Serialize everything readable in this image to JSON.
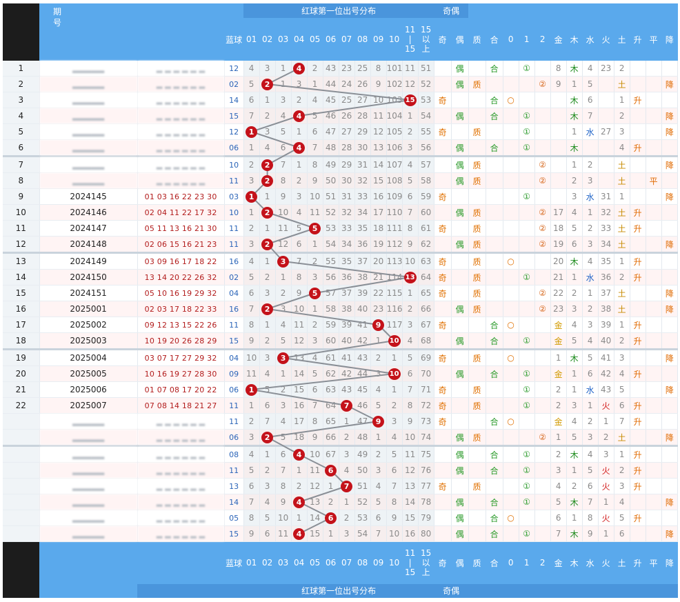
{
  "header": {
    "period_label": "期号",
    "red_first_title": "红球第一位出号分布",
    "odd_even_title": "奇偶",
    "blue_label": "蓝球",
    "dist_columns": [
      "01",
      "02",
      "03",
      "04",
      "05",
      "06",
      "07",
      "08",
      "09",
      "10",
      "11\n|\n15",
      "15\n以\n上"
    ],
    "attr_columns": [
      "奇",
      "偶",
      "质",
      "合",
      "0",
      "1",
      "2",
      "金",
      "木",
      "水",
      "火",
      "土",
      "升",
      "平",
      "降"
    ]
  },
  "footer": {
    "red_first_title": "红球第一位出号分布",
    "odd_even_title": "奇偶",
    "blue_label": "蓝球"
  },
  "rows": [
    {
      "idx": "1",
      "period": "",
      "nums": "",
      "blue": "12",
      "dist": [
        "4",
        "3",
        "1",
        "B:4",
        "2",
        "43",
        "23",
        "25",
        "8",
        "101",
        "11",
        "51"
      ],
      "attrs": [
        "",
        "偶",
        "",
        "合",
        "",
        "①",
        "",
        "8",
        "木",
        "4",
        "23",
        "2",
        "",
        "",
        ""
      ]
    },
    {
      "idx": "2",
      "period": "",
      "nums": "",
      "blue": "02",
      "dist": [
        "5",
        "B:2",
        "1",
        "3",
        "1",
        "44",
        "24",
        "26",
        "9",
        "102",
        "12",
        "52"
      ],
      "attrs": [
        "",
        "偶",
        "质",
        "",
        "",
        "",
        "②",
        "9",
        "1",
        "5",
        "",
        "土",
        "",
        "",
        "降"
      ]
    },
    {
      "idx": "3",
      "period": "",
      "nums": "",
      "blue": "14",
      "dist": [
        "6",
        "1",
        "3",
        "2",
        "4",
        "45",
        "25",
        "27",
        "10",
        "103",
        "B:15",
        "53"
      ],
      "attrs": [
        "奇",
        "",
        "",
        "合",
        "○",
        "",
        "",
        "",
        "木",
        "6",
        "",
        "1",
        "升",
        "",
        ""
      ]
    },
    {
      "idx": "4",
      "period": "",
      "nums": "",
      "blue": "15",
      "dist": [
        "7",
        "2",
        "4",
        "B:4",
        "5",
        "46",
        "26",
        "28",
        "11",
        "104",
        "1",
        "54"
      ],
      "attrs": [
        "",
        "偶",
        "",
        "合",
        "",
        "①",
        "",
        "",
        "木",
        "7",
        "",
        "2",
        "",
        "",
        "降"
      ]
    },
    {
      "idx": "5",
      "period": "",
      "nums": "",
      "blue": "12",
      "dist": [
        "B:1",
        "3",
        "5",
        "1",
        "6",
        "47",
        "27",
        "29",
        "12",
        "105",
        "2",
        "55"
      ],
      "attrs": [
        "奇",
        "",
        "质",
        "",
        "",
        "①",
        "",
        "",
        "1",
        "水",
        "27",
        "3",
        "",
        "",
        "降"
      ]
    },
    {
      "idx": "6",
      "period": "",
      "nums": "",
      "blue": "06",
      "dist": [
        "1",
        "4",
        "6",
        "B:4",
        "7",
        "48",
        "28",
        "30",
        "13",
        "106",
        "3",
        "56"
      ],
      "attrs": [
        "",
        "偶",
        "",
        "合",
        "",
        "①",
        "",
        "",
        "木",
        "",
        "",
        "4",
        "升",
        "",
        ""
      ]
    },
    {
      "idx": "7",
      "period": "",
      "nums": "",
      "blue": "10",
      "dist": [
        "2",
        "B:2",
        "7",
        "1",
        "8",
        "49",
        "29",
        "31",
        "14",
        "107",
        "4",
        "57"
      ],
      "attrs": [
        "",
        "偶",
        "质",
        "",
        "",
        "",
        "②",
        "",
        "1",
        "2",
        "",
        "土",
        "",
        "",
        "降"
      ]
    },
    {
      "idx": "8",
      "period": "",
      "nums": "",
      "blue": "11",
      "dist": [
        "3",
        "B:2",
        "8",
        "2",
        "9",
        "50",
        "30",
        "32",
        "15",
        "108",
        "5",
        "58"
      ],
      "attrs": [
        "",
        "偶",
        "质",
        "",
        "",
        "",
        "②",
        "",
        "2",
        "3",
        "",
        "土",
        "",
        "平",
        ""
      ]
    },
    {
      "idx": "9",
      "period": "2024145",
      "nums": "01 03 16 22 23 30",
      "blue": "03",
      "dist": [
        "B:1",
        "1",
        "9",
        "3",
        "10",
        "51",
        "31",
        "33",
        "16",
        "109",
        "6",
        "59"
      ],
      "attrs": [
        "奇",
        "",
        "",
        "",
        "",
        "①",
        "",
        "",
        "3",
        "水",
        "31",
        "1",
        "",
        "",
        "降"
      ]
    },
    {
      "idx": "10",
      "period": "2024146",
      "nums": "02 04 11 22 17 32",
      "blue": "10",
      "dist": [
        "1",
        "B:2",
        "10",
        "4",
        "11",
        "52",
        "32",
        "34",
        "17",
        "110",
        "7",
        "60"
      ],
      "attrs": [
        "",
        "偶",
        "质",
        "",
        "",
        "",
        "②",
        "17",
        "4",
        "1",
        "32",
        "土",
        "升",
        "",
        ""
      ]
    },
    {
      "idx": "11",
      "period": "2024147",
      "nums": "05 11 13 16 21 30",
      "blue": "11",
      "dist": [
        "2",
        "1",
        "11",
        "5",
        "B:5",
        "53",
        "33",
        "35",
        "18",
        "111",
        "8",
        "61"
      ],
      "attrs": [
        "奇",
        "",
        "质",
        "",
        "",
        "",
        "②",
        "18",
        "5",
        "2",
        "33",
        "土",
        "升",
        "",
        ""
      ]
    },
    {
      "idx": "12",
      "period": "2024148",
      "nums": "02 06 15 16 21 23",
      "blue": "11",
      "dist": [
        "3",
        "B:2",
        "12",
        "6",
        "1",
        "54",
        "34",
        "36",
        "19",
        "112",
        "9",
        "62"
      ],
      "attrs": [
        "",
        "偶",
        "质",
        "",
        "",
        "",
        "②",
        "19",
        "6",
        "3",
        "34",
        "土",
        "",
        "",
        "降"
      ]
    },
    {
      "idx": "13",
      "period": "2024149",
      "nums": "03 09 16 17 18 22",
      "blue": "16",
      "dist": [
        "4",
        "1",
        "B:3",
        "7",
        "2",
        "55",
        "35",
        "37",
        "20",
        "113",
        "10",
        "63"
      ],
      "attrs": [
        "奇",
        "",
        "质",
        "",
        "○",
        "",
        "",
        "20",
        "木",
        "4",
        "35",
        "1",
        "升",
        "",
        ""
      ]
    },
    {
      "idx": "14",
      "period": "2024150",
      "nums": "13 14 20 22 26 32",
      "blue": "02",
      "dist": [
        "5",
        "2",
        "1",
        "8",
        "3",
        "56",
        "36",
        "38",
        "21",
        "114",
        "B:13",
        "64"
      ],
      "attrs": [
        "奇",
        "",
        "质",
        "",
        "",
        "①",
        "",
        "21",
        "1",
        "水",
        "36",
        "2",
        "升",
        "",
        ""
      ]
    },
    {
      "idx": "15",
      "period": "2024151",
      "nums": "05 10 16 19 29 32",
      "blue": "04",
      "dist": [
        "6",
        "3",
        "2",
        "9",
        "B:5",
        "57",
        "37",
        "39",
        "22",
        "115",
        "1",
        "65"
      ],
      "attrs": [
        "奇",
        "",
        "质",
        "",
        "",
        "",
        "②",
        "22",
        "2",
        "1",
        "37",
        "土",
        "",
        "",
        "降"
      ]
    },
    {
      "idx": "16",
      "period": "2025001",
      "nums": "02 03 17 18 22 33",
      "blue": "16",
      "dist": [
        "7",
        "B:2",
        "3",
        "10",
        "1",
        "58",
        "38",
        "40",
        "23",
        "116",
        "2",
        "66"
      ],
      "attrs": [
        "",
        "偶",
        "质",
        "",
        "",
        "",
        "②",
        "23",
        "3",
        "2",
        "38",
        "土",
        "",
        "",
        "降"
      ]
    },
    {
      "idx": "17",
      "period": "2025002",
      "nums": "09 12 13 15 22 26",
      "blue": "11",
      "dist": [
        "8",
        "1",
        "4",
        "11",
        "2",
        "59",
        "39",
        "41",
        "B:9",
        "117",
        "3",
        "67"
      ],
      "attrs": [
        "奇",
        "",
        "",
        "合",
        "○",
        "",
        "",
        "金",
        "4",
        "3",
        "39",
        "1",
        "升",
        "",
        ""
      ]
    },
    {
      "idx": "18",
      "period": "2025003",
      "nums": "10 19 20 26 28 29",
      "blue": "15",
      "dist": [
        "9",
        "2",
        "5",
        "12",
        "3",
        "60",
        "40",
        "42",
        "1",
        "B:10",
        "4",
        "68"
      ],
      "attrs": [
        "",
        "偶",
        "",
        "合",
        "",
        "①",
        "",
        "金",
        "5",
        "4",
        "40",
        "2",
        "升",
        "",
        ""
      ]
    },
    {
      "idx": "19",
      "period": "2025004",
      "nums": "03 07 17 27 29 32",
      "blue": "04",
      "dist": [
        "10",
        "3",
        "B:3",
        "13",
        "4",
        "61",
        "41",
        "43",
        "2",
        "1",
        "5",
        "69"
      ],
      "attrs": [
        "奇",
        "",
        "质",
        "",
        "○",
        "",
        "",
        "1",
        "木",
        "5",
        "41",
        "3",
        "",
        "",
        "降"
      ]
    },
    {
      "idx": "20",
      "period": "2025005",
      "nums": "10 16 19 27 28 30",
      "blue": "09",
      "dist": [
        "11",
        "4",
        "1",
        "14",
        "5",
        "62",
        "42",
        "44",
        "3",
        "B:10",
        "6",
        "70"
      ],
      "attrs": [
        "",
        "偶",
        "",
        "合",
        "",
        "①",
        "",
        "金",
        "1",
        "6",
        "42",
        "4",
        "升",
        "",
        ""
      ]
    },
    {
      "idx": "21",
      "period": "2025006",
      "nums": "01 07 08 17 20 22",
      "blue": "06",
      "dist": [
        "B:1",
        "5",
        "2",
        "15",
        "6",
        "63",
        "43",
        "45",
        "4",
        "1",
        "7",
        "71"
      ],
      "attrs": [
        "奇",
        "",
        "质",
        "",
        "",
        "①",
        "",
        "2",
        "1",
        "水",
        "43",
        "5",
        "",
        "",
        "降"
      ]
    },
    {
      "idx": "22",
      "period": "2025007",
      "nums": "07 08 14 18 21 27",
      "blue": "11",
      "dist": [
        "1",
        "6",
        "3",
        "16",
        "7",
        "64",
        "B:7",
        "46",
        "5",
        "2",
        "8",
        "72"
      ],
      "attrs": [
        "奇",
        "",
        "质",
        "",
        "",
        "①",
        "",
        "2",
        "3",
        "1",
        "火",
        "6",
        "升",
        "",
        ""
      ]
    },
    {
      "idx": "",
      "period": "",
      "nums": "",
      "blue": "11",
      "dist": [
        "2",
        "7",
        "4",
        "17",
        "8",
        "65",
        "1",
        "47",
        "B:9",
        "3",
        "9",
        "73"
      ],
      "attrs": [
        "奇",
        "",
        "",
        "合",
        "○",
        "",
        "",
        "金",
        "4",
        "2",
        "1",
        "7",
        "升",
        "",
        ""
      ]
    },
    {
      "idx": "",
      "period": "",
      "nums": "",
      "blue": "06",
      "dist": [
        "3",
        "B:2",
        "5",
        "18",
        "9",
        "66",
        "2",
        "48",
        "1",
        "4",
        "10",
        "74"
      ],
      "attrs": [
        "",
        "偶",
        "质",
        "",
        "",
        "",
        "②",
        "1",
        "5",
        "3",
        "2",
        "土",
        "",
        "",
        "降"
      ]
    },
    {
      "idx": "",
      "period": "",
      "nums": "",
      "blue": "08",
      "dist": [
        "4",
        "1",
        "6",
        "B:4",
        "10",
        "67",
        "3",
        "49",
        "2",
        "5",
        "11",
        "75"
      ],
      "attrs": [
        "",
        "偶",
        "",
        "合",
        "",
        "①",
        "",
        "2",
        "木",
        "4",
        "3",
        "1",
        "升",
        "",
        ""
      ]
    },
    {
      "idx": "",
      "period": "",
      "nums": "",
      "blue": "11",
      "dist": [
        "5",
        "2",
        "7",
        "1",
        "11",
        "B:6",
        "4",
        "50",
        "3",
        "6",
        "12",
        "76"
      ],
      "attrs": [
        "",
        "偶",
        "",
        "合",
        "",
        "①",
        "",
        "3",
        "1",
        "5",
        "火",
        "2",
        "升",
        "",
        ""
      ]
    },
    {
      "idx": "",
      "period": "",
      "nums": "",
      "blue": "13",
      "dist": [
        "6",
        "3",
        "8",
        "2",
        "12",
        "1",
        "B:7",
        "51",
        "4",
        "7",
        "13",
        "77"
      ],
      "attrs": [
        "奇",
        "",
        "质",
        "",
        "",
        "①",
        "",
        "4",
        "2",
        "6",
        "火",
        "3",
        "升",
        "",
        ""
      ]
    },
    {
      "idx": "",
      "period": "",
      "nums": "",
      "blue": "14",
      "dist": [
        "7",
        "4",
        "9",
        "B:4",
        "13",
        "2",
        "1",
        "52",
        "5",
        "8",
        "14",
        "78"
      ],
      "attrs": [
        "",
        "偶",
        "",
        "合",
        "",
        "①",
        "",
        "5",
        "木",
        "7",
        "1",
        "4",
        "",
        "",
        "降"
      ]
    },
    {
      "idx": "",
      "period": "",
      "nums": "",
      "blue": "05",
      "dist": [
        "8",
        "5",
        "10",
        "1",
        "14",
        "B:6",
        "2",
        "53",
        "6",
        "9",
        "15",
        "79"
      ],
      "attrs": [
        "",
        "偶",
        "",
        "合",
        "○",
        "",
        "",
        "6",
        "1",
        "8",
        "火",
        "5",
        "升",
        "",
        ""
      ]
    },
    {
      "idx": "",
      "period": "",
      "nums": "",
      "blue": "15",
      "dist": [
        "9",
        "6",
        "11",
        "B:4",
        "15",
        "1",
        "3",
        "54",
        "7",
        "10",
        "16",
        "80"
      ],
      "attrs": [
        "",
        "偶",
        "",
        "合",
        "",
        "①",
        "",
        "7",
        "木",
        "9",
        "1",
        "6",
        "",
        "",
        "降"
      ]
    }
  ]
}
